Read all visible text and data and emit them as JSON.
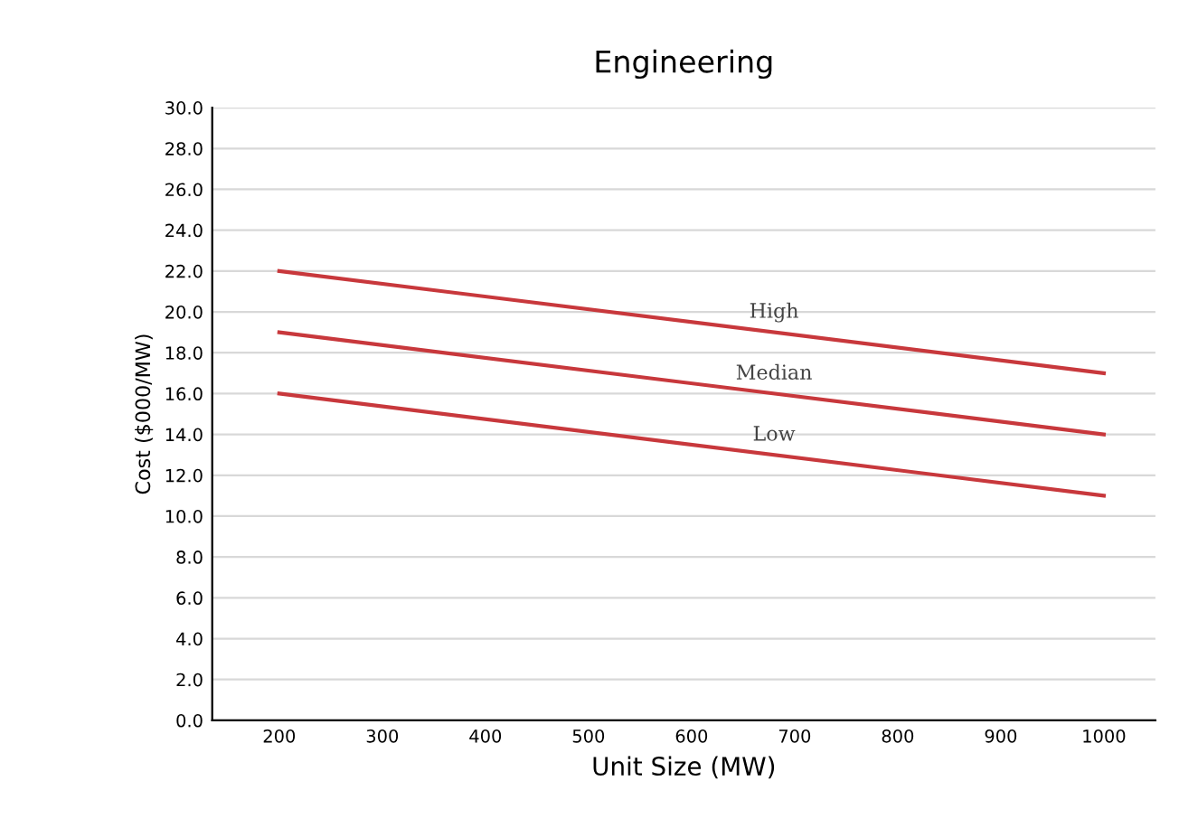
{
  "chart_data": {
    "type": "line",
    "title": "Engineering",
    "xlabel": "Unit Size (MW)",
    "ylabel": "Cost ($000/MW)",
    "x": [
      200,
      1000
    ],
    "series": [
      {
        "name": "High",
        "color": "#c8383c",
        "values": [
          22,
          17
        ]
      },
      {
        "name": "Median",
        "color": "#c8383c",
        "values": [
          19,
          14
        ]
      },
      {
        "name": "Low",
        "color": "#c8383c",
        "values": [
          16,
          11
        ]
      }
    ],
    "xlim": [
      135,
      1050
    ],
    "xticks": [
      200,
      300,
      400,
      500,
      600,
      700,
      800,
      900,
      1000
    ],
    "ylim": [
      0,
      30
    ],
    "yticks": [
      {
        "value": 0,
        "label": "0.0"
      },
      {
        "value": 2,
        "label": "2.0"
      },
      {
        "value": 4,
        "label": "4.0"
      },
      {
        "value": 6,
        "label": "6.0"
      },
      {
        "value": 8,
        "label": "8.0"
      },
      {
        "value": 10,
        "label": "10.0"
      },
      {
        "value": 12,
        "label": "12.0"
      },
      {
        "value": 14,
        "label": "14.0"
      },
      {
        "value": 16,
        "label": "16.0"
      },
      {
        "value": 18,
        "label": "18.0"
      },
      {
        "value": 20,
        "label": "20.0"
      },
      {
        "value": 22,
        "label": "22.0"
      },
      {
        "value": 24,
        "label": "24.0"
      },
      {
        "value": 26,
        "label": "26.0"
      },
      {
        "value": 28,
        "label": "28.0"
      },
      {
        "value": 30,
        "label": "30.0"
      }
    ],
    "grid": "y",
    "marker": "none",
    "line_style": "solid",
    "legend": false
  }
}
